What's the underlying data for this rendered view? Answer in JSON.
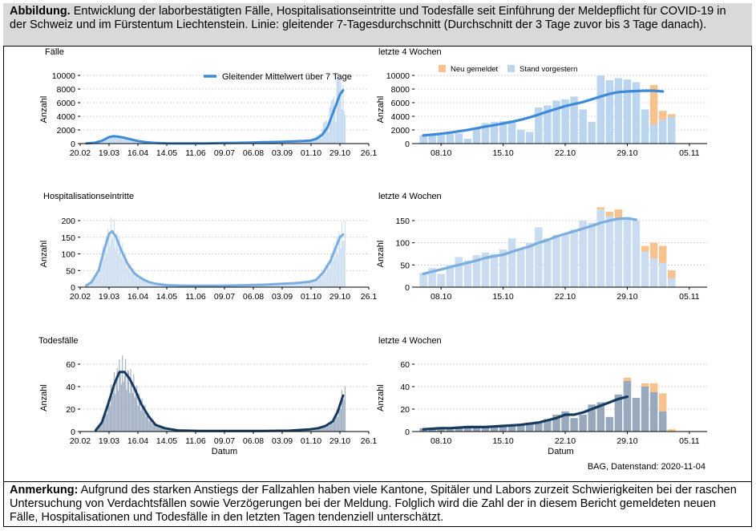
{
  "caption": {
    "label": "Abbildung.",
    "text": " Entwicklung der laborbestätigten Fälle, Hospitalisationseintritte und Todesfälle seit Einführung der Meldepflicht für COVID-19 in der Schweiz und im Fürstentum Liechtenstein. Linie: gleitender 7-Tagesdurchschnitt (Durchschnitt der 3 Tage zuvor bis 3 Tage danach)."
  },
  "note": {
    "label": "Anmerkung:",
    "text": " Aufgrund des starken Anstiegs der Fallzahlen haben viele Kantone, Spitäler und Labors zurzeit Schwierigkeiten bei der raschen Untersuchung von Verdachtsfällen sowie Verzögerungen bei der Meldung. Folglich wird die Zahl der in diesem Bericht gemeldeten neuen Fälle, Hospitalisationen und Todesfälle in den letzten Tagen tendenziell unterschätzt."
  },
  "source": "BAG, Datenstand: 2020-11-04",
  "colors": {
    "faelle_line": "#3d8ad8",
    "faelle_bar": "#bcd5ee",
    "hosp_line": "#7aaee0",
    "hosp_bar": "#c9dcf0",
    "tod_line": "#173a5e",
    "tod_bar": "#98a9be",
    "neu_gemeldet": "#f7c28e",
    "grid": "#c8c8c8"
  },
  "chart_data": [
    {
      "type": "bar",
      "panel": "Fälle, gesamter Zeitraum",
      "title": "Fälle",
      "ylabel": "Anzahl",
      "xlabel": "",
      "ylim": [
        0,
        10000
      ],
      "yticks": [
        0,
        2000,
        4000,
        6000,
        8000,
        10000
      ],
      "x_range": [
        "2020-02-20",
        "2020-11-26"
      ],
      "xticks": [
        "20.02",
        "19.03",
        "16.04",
        "14.05",
        "11.06",
        "09.07",
        "06.08",
        "03.09",
        "01.10",
        "29.10",
        "26.1"
      ],
      "legend": [
        "Gleitender Mittelwert über 7 Tage"
      ],
      "legend_position": "top-right",
      "series": [
        {
          "name": "Gleitender Mittelwert über 7 Tage",
          "kind": "line",
          "x": [
            "2020-02-26",
            "2020-03-05",
            "2020-03-12",
            "2020-03-19",
            "2020-03-23",
            "2020-03-27",
            "2020-04-02",
            "2020-04-09",
            "2020-04-16",
            "2020-04-23",
            "2020-05-01",
            "2020-05-15",
            "2020-06-01",
            "2020-06-20",
            "2020-07-06",
            "2020-07-20",
            "2020-08-03",
            "2020-08-17",
            "2020-09-01",
            "2020-09-14",
            "2020-09-24",
            "2020-10-01",
            "2020-10-07",
            "2020-10-12",
            "2020-10-17",
            "2020-10-21",
            "2020-10-25",
            "2020-10-29",
            "2020-11-01"
          ],
          "y": [
            20,
            120,
            400,
            950,
            1080,
            1030,
            880,
            620,
            380,
            220,
            120,
            40,
            20,
            30,
            80,
            110,
            140,
            200,
            250,
            330,
            390,
            460,
            750,
            1300,
            2400,
            4000,
            5600,
            7200,
            7800
          ]
        },
        {
          "name": "Tageswerte",
          "kind": "bar",
          "x": [
            "2020-10-06",
            "2020-10-07",
            "2020-10-08",
            "2020-10-09",
            "2020-10-10",
            "2020-10-11",
            "2020-10-12",
            "2020-10-13",
            "2020-10-14",
            "2020-10-15",
            "2020-10-16",
            "2020-10-17",
            "2020-10-18",
            "2020-10-19",
            "2020-10-20",
            "2020-10-21",
            "2020-10-22",
            "2020-10-23",
            "2020-10-24",
            "2020-10-25",
            "2020-10-26",
            "2020-10-27",
            "2020-10-28",
            "2020-10-29",
            "2020-10-30",
            "2020-10-31",
            "2020-11-01",
            "2020-11-02",
            "2020-11-03"
          ],
          "y": [
            1200,
            1250,
            1300,
            1400,
            1500,
            700,
            2200,
            3000,
            3200,
            3300,
            3400,
            2000,
            1700,
            5300,
            5600,
            6300,
            6500,
            6900,
            5000,
            3200,
            10000,
            9300,
            9600,
            9400,
            9000,
            5000,
            8600,
            4800,
            4300
          ]
        }
      ]
    },
    {
      "type": "bar",
      "panel": "Fälle, letzte 4 Wochen",
      "title": "letzte 4 Wochen",
      "ylabel": "Anzahl",
      "xlabel": "",
      "ylim": [
        0,
        10000
      ],
      "yticks": [
        0,
        2000,
        4000,
        6000,
        8000,
        10000
      ],
      "x_range": [
        "2020-10-05",
        "2020-11-07"
      ],
      "xticks": [
        "08.10",
        "15.10",
        "22.10",
        "29.10",
        "05.11"
      ],
      "legend": [
        "Neu gemeldet",
        "Stand vorgestern"
      ],
      "legend_position": "top",
      "x": [
        "2020-10-06",
        "2020-10-07",
        "2020-10-08",
        "2020-10-09",
        "2020-10-10",
        "2020-10-11",
        "2020-10-12",
        "2020-10-13",
        "2020-10-14",
        "2020-10-15",
        "2020-10-16",
        "2020-10-17",
        "2020-10-18",
        "2020-10-19",
        "2020-10-20",
        "2020-10-21",
        "2020-10-22",
        "2020-10-23",
        "2020-10-24",
        "2020-10-25",
        "2020-10-26",
        "2020-10-27",
        "2020-10-28",
        "2020-10-29",
        "2020-10-30",
        "2020-10-31",
        "2020-11-01",
        "2020-11-02",
        "2020-11-03"
      ],
      "series": [
        {
          "name": "Stand vorgestern",
          "kind": "bar",
          "values": [
            1200,
            1250,
            1300,
            1400,
            1500,
            700,
            2200,
            3000,
            3200,
            3300,
            3400,
            2000,
            1700,
            5300,
            5600,
            6300,
            6500,
            6900,
            5000,
            3200,
            10000,
            9300,
            9600,
            9400,
            9000,
            5000,
            2800,
            3500,
            3900
          ]
        },
        {
          "name": "Neu gemeldet",
          "kind": "bar",
          "values": [
            0,
            0,
            0,
            0,
            0,
            0,
            0,
            0,
            0,
            0,
            0,
            0,
            0,
            0,
            0,
            0,
            0,
            0,
            0,
            0,
            0,
            0,
            0,
            0,
            0,
            0,
            5800,
            1300,
            400
          ]
        },
        {
          "name": "Gleitender Mittelwert über 7 Tage",
          "kind": "line",
          "values": [
            1200,
            1300,
            1450,
            1600,
            1800,
            2000,
            2250,
            2500,
            2700,
            2950,
            3200,
            3500,
            3850,
            4250,
            4700,
            5100,
            5500,
            5800,
            6100,
            6500,
            6900,
            7300,
            7550,
            7650,
            7700,
            7750,
            7750,
            7650,
            null
          ]
        }
      ]
    },
    {
      "type": "bar",
      "panel": "Hospitalisationseintritte, gesamter Zeitraum",
      "title": "Hospitalisationseintritte",
      "ylabel": "Anzahl",
      "xlabel": "",
      "ylim": [
        0,
        200
      ],
      "yticks": [
        0,
        50,
        100,
        150,
        200
      ],
      "x_range": [
        "2020-02-20",
        "2020-11-26"
      ],
      "xticks": [
        "20.02",
        "19.03",
        "16.04",
        "14.05",
        "11.06",
        "09.07",
        "06.08",
        "03.09",
        "01.10",
        "29.10",
        "26.1"
      ],
      "series": [
        {
          "name": "Gleitender Mittelwert über 7 Tage",
          "kind": "line",
          "x": [
            "2020-02-26",
            "2020-03-02",
            "2020-03-09",
            "2020-03-14",
            "2020-03-19",
            "2020-03-22",
            "2020-03-26",
            "2020-03-31",
            "2020-04-06",
            "2020-04-13",
            "2020-04-20",
            "2020-04-27",
            "2020-05-04",
            "2020-05-14",
            "2020-06-01",
            "2020-07-01",
            "2020-08-01",
            "2020-08-20",
            "2020-09-01",
            "2020-09-15",
            "2020-09-29",
            "2020-10-06",
            "2020-10-13",
            "2020-10-20",
            "2020-10-25",
            "2020-10-29",
            "2020-11-01"
          ],
          "y": [
            5,
            15,
            50,
            110,
            160,
            168,
            150,
            110,
            70,
            40,
            25,
            15,
            10,
            6,
            4,
            4,
            6,
            8,
            10,
            12,
            16,
            22,
            45,
            80,
            120,
            150,
            158
          ]
        }
      ]
    },
    {
      "type": "bar",
      "panel": "Hospitalisationseintritte, letzte 4 Wochen",
      "title": "letzte 4 Wochen",
      "ylabel": "Anzahl",
      "xlabel": "",
      "ylim": [
        0,
        180
      ],
      "yticks": [
        0,
        50,
        100,
        150
      ],
      "x_range": [
        "2020-10-05",
        "2020-11-07"
      ],
      "xticks": [
        "08.10",
        "15.10",
        "22.10",
        "29.10",
        "05.11"
      ],
      "x": [
        "2020-10-06",
        "2020-10-07",
        "2020-10-08",
        "2020-10-09",
        "2020-10-10",
        "2020-10-11",
        "2020-10-12",
        "2020-10-13",
        "2020-10-14",
        "2020-10-15",
        "2020-10-16",
        "2020-10-17",
        "2020-10-18",
        "2020-10-19",
        "2020-10-20",
        "2020-10-21",
        "2020-10-22",
        "2020-10-23",
        "2020-10-24",
        "2020-10-25",
        "2020-10-26",
        "2020-10-27",
        "2020-10-28",
        "2020-10-29",
        "2020-10-30",
        "2020-10-31",
        "2020-11-01",
        "2020-11-02",
        "2020-11-03"
      ],
      "series": [
        {
          "name": "Stand vorgestern",
          "kind": "bar",
          "values": [
            32,
            43,
            30,
            50,
            68,
            60,
            72,
            78,
            75,
            85,
            110,
            85,
            100,
            135,
            110,
            118,
            120,
            130,
            150,
            145,
            175,
            160,
            155,
            158,
            150,
            80,
            65,
            55,
            20
          ]
        },
        {
          "name": "Neu gemeldet",
          "kind": "bar",
          "values": [
            0,
            0,
            0,
            0,
            0,
            0,
            0,
            0,
            0,
            0,
            0,
            0,
            0,
            0,
            0,
            0,
            0,
            0,
            0,
            0,
            5,
            10,
            20,
            0,
            0,
            13,
            35,
            38,
            18
          ]
        },
        {
          "name": "Gleitender Mittelwert über 7 Tage",
          "kind": "line",
          "values": [
            30,
            35,
            40,
            45,
            50,
            55,
            60,
            66,
            70,
            73,
            80,
            86,
            92,
            100,
            106,
            114,
            120,
            126,
            132,
            138,
            145,
            150,
            154,
            155,
            152,
            null,
            null,
            null,
            null
          ]
        }
      ]
    },
    {
      "type": "bar",
      "panel": "Todesfälle, gesamter Zeitraum",
      "title": "Todesfälle",
      "ylabel": "Anzahl",
      "xlabel": "Datum",
      "ylim": [
        0,
        65
      ],
      "yticks": [
        0,
        20,
        40,
        60
      ],
      "x_range": [
        "2020-02-20",
        "2020-11-26"
      ],
      "xticks": [
        "20.02",
        "19.03",
        "16.04",
        "14.05",
        "11.06",
        "09.07",
        "06.08",
        "03.09",
        "01.10",
        "29.10",
        "26.1"
      ],
      "series": [
        {
          "name": "Gleitender Mittelwert über 7 Tage",
          "kind": "line",
          "x": [
            "2020-03-06",
            "2020-03-12",
            "2020-03-18",
            "2020-03-24",
            "2020-03-29",
            "2020-04-03",
            "2020-04-08",
            "2020-04-13",
            "2020-04-19",
            "2020-04-26",
            "2020-05-03",
            "2020-05-12",
            "2020-05-25",
            "2020-06-15",
            "2020-07-15",
            "2020-08-15",
            "2020-09-10",
            "2020-09-30",
            "2020-10-08",
            "2020-10-15",
            "2020-10-22",
            "2020-10-27",
            "2020-11-01"
          ],
          "y": [
            1,
            8,
            24,
            42,
            53,
            53,
            47,
            38,
            25,
            14,
            6,
            3,
            1,
            0.5,
            0.5,
            0.5,
            0.8,
            2,
            3,
            5,
            9,
            18,
            32
          ]
        }
      ]
    },
    {
      "type": "bar",
      "panel": "Todesfälle, letzte 4 Wochen",
      "title": "letzte 4 Wochen",
      "ylabel": "Anzahl",
      "xlabel": "Datum",
      "ylim": [
        0,
        65
      ],
      "yticks": [
        0,
        20,
        40,
        60
      ],
      "x_range": [
        "2020-10-05",
        "2020-11-07"
      ],
      "xticks": [
        "08.10",
        "15.10",
        "22.10",
        "29.10",
        "05.11"
      ],
      "x": [
        "2020-10-06",
        "2020-10-07",
        "2020-10-08",
        "2020-10-09",
        "2020-10-10",
        "2020-10-11",
        "2020-10-12",
        "2020-10-13",
        "2020-10-14",
        "2020-10-15",
        "2020-10-16",
        "2020-10-17",
        "2020-10-18",
        "2020-10-19",
        "2020-10-20",
        "2020-10-21",
        "2020-10-22",
        "2020-10-23",
        "2020-10-24",
        "2020-10-25",
        "2020-10-26",
        "2020-10-27",
        "2020-10-28",
        "2020-10-29",
        "2020-10-30",
        "2020-10-31",
        "2020-11-01",
        "2020-11-02",
        "2020-11-03"
      ],
      "series": [
        {
          "name": "Stand vorgestern",
          "kind": "bar",
          "values": [
            3,
            2,
            4,
            3,
            4,
            3,
            4,
            4,
            5,
            6,
            5,
            6,
            8,
            9,
            11,
            15,
            18,
            12,
            15,
            24,
            26,
            13,
            33,
            45,
            30,
            40,
            35,
            18,
            0
          ]
        },
        {
          "name": "Neu gemeldet",
          "kind": "bar",
          "values": [
            0,
            0,
            0,
            0,
            0,
            0,
            0,
            0,
            0,
            0,
            0,
            0,
            0,
            0,
            0,
            0,
            0,
            0,
            0,
            0,
            0,
            0,
            0,
            3,
            0,
            3,
            8,
            16,
            2
          ]
        },
        {
          "name": "Gleitender Mittelwert über 7 Tage",
          "kind": "line",
          "values": [
            2,
            2.5,
            3,
            3,
            3.5,
            4,
            4,
            4,
            4.5,
            5,
            5.5,
            6,
            7,
            8,
            10,
            12,
            15,
            15,
            17,
            20,
            23,
            26,
            29,
            31,
            null,
            null,
            null,
            null,
            null
          ]
        }
      ]
    }
  ]
}
